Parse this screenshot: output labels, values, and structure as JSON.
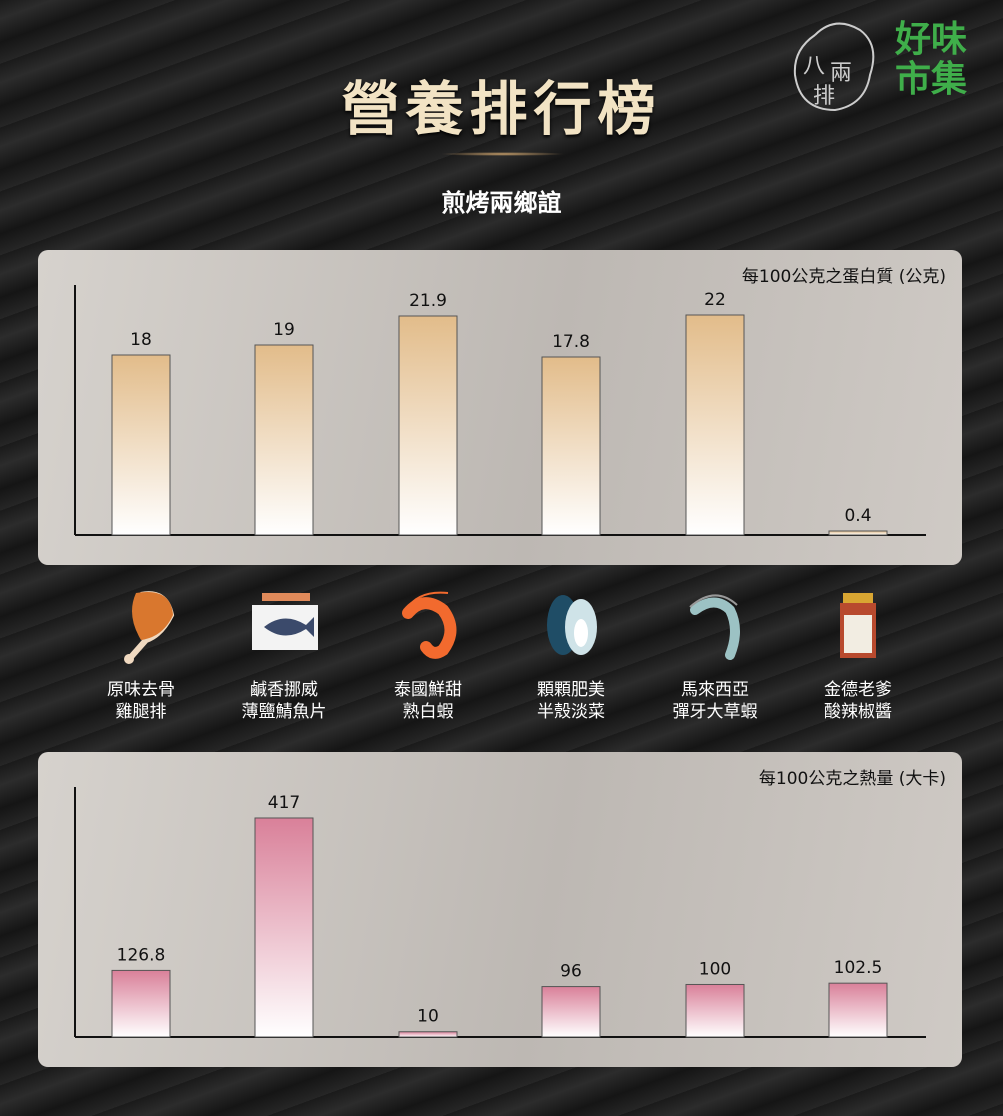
{
  "title": "營養排行榜",
  "subtitle": "煎烤兩鄉誼",
  "logos": {
    "left": "八兩排",
    "right": "好味市集"
  },
  "items": [
    {
      "line1": "原味去骨",
      "line2": "雞腿排",
      "icon": "chicken-leg-icon"
    },
    {
      "line1": "鹹香挪威",
      "line2": "薄鹽鯖魚片",
      "icon": "mackerel-pack-icon"
    },
    {
      "line1": "泰國鮮甜",
      "line2": "熟白蝦",
      "icon": "orange-shrimp-icon"
    },
    {
      "line1": "顆顆肥美",
      "line2": "半殼淡菜",
      "icon": "mussel-icon"
    },
    {
      "line1": "馬來西亞",
      "line2": "彈牙大草蝦",
      "icon": "tiger-prawn-icon"
    },
    {
      "line1": "金德老爹",
      "line2": "酸辣椒醬",
      "icon": "chili-sauce-jar-icon"
    }
  ],
  "chart_data": [
    {
      "type": "bar",
      "title": "每100公克之蛋白質 (公克)",
      "categories": [
        "原味去骨雞腿排",
        "鹹香挪威薄鹽鯖魚片",
        "泰國鮮甜熟白蝦",
        "顆顆肥美半殼淡菜",
        "馬來西亞彈牙大草蝦",
        "金德老爹酸辣椒醬"
      ],
      "values": [
        18,
        19,
        21.9,
        17.8,
        22,
        0.4
      ],
      "ylim": [
        0,
        25
      ],
      "grid": false,
      "color_top": "#e2bc8a",
      "color_bottom": "#ffffff"
    },
    {
      "type": "bar",
      "title": "每100公克之熱量 (大卡)",
      "categories": [
        "原味去骨雞腿排",
        "鹹香挪威薄鹽鯖魚片",
        "泰國鮮甜熟白蝦",
        "顆顆肥美半殼淡菜",
        "馬來西亞彈牙大草蝦",
        "金德老爹酸辣椒醬"
      ],
      "values": [
        126.8,
        417,
        10,
        96,
        100,
        102.5
      ],
      "ylim": [
        0,
        476
      ],
      "grid": false,
      "color_top": "#d98099",
      "color_bottom": "#ffffff"
    }
  ]
}
